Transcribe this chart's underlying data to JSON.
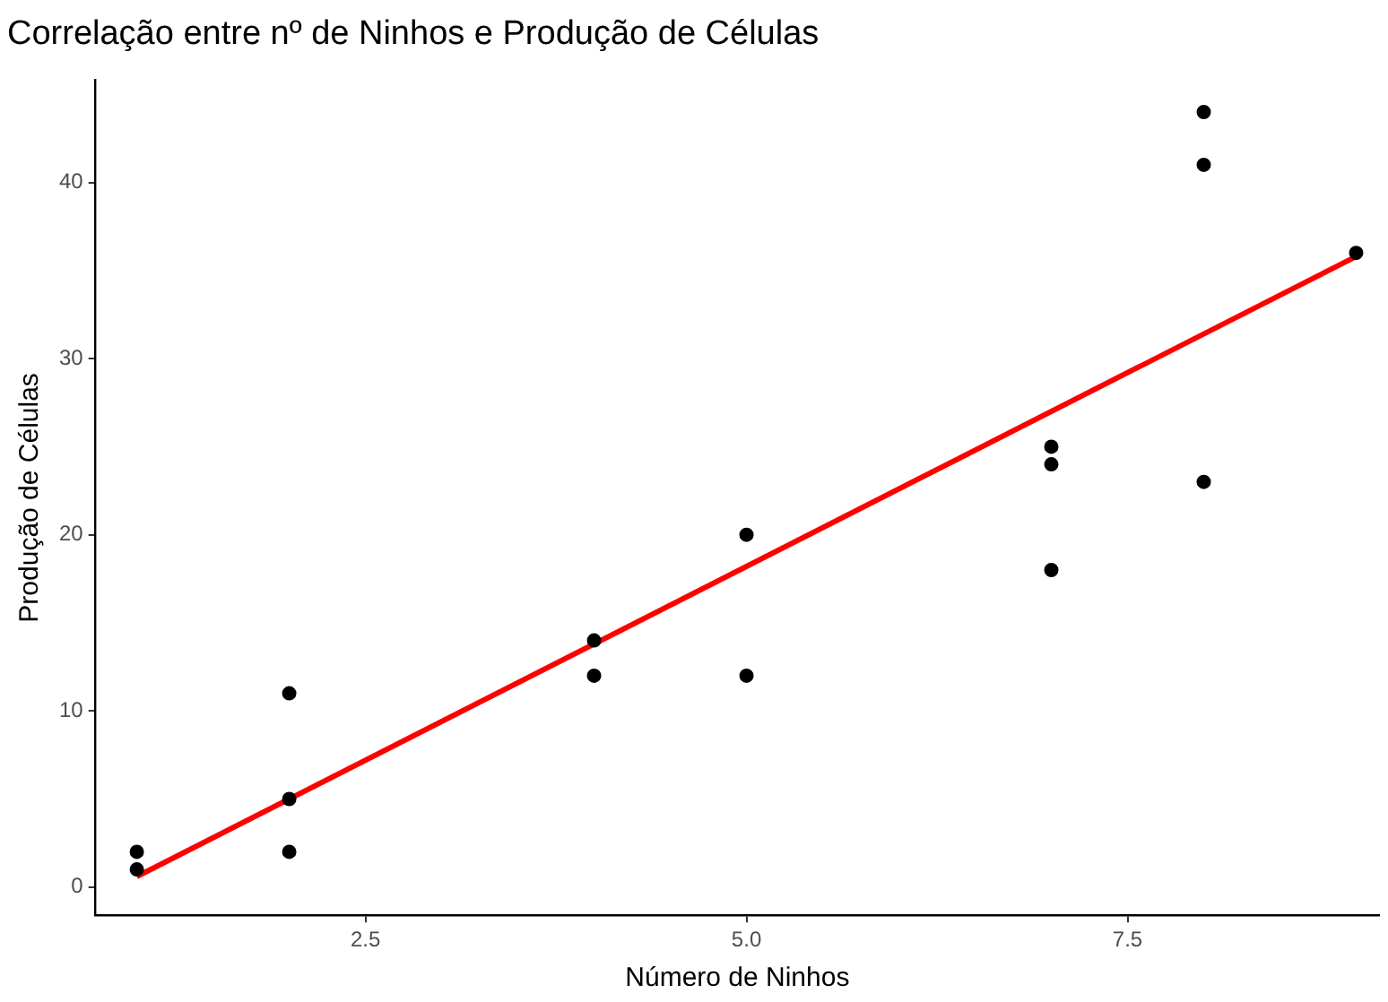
{
  "chart_data": {
    "type": "scatter",
    "title": "Correlação entre nº de Ninhos e Produção de Células",
    "xlabel": "Número de Ninhos",
    "ylabel": "Produção de Células",
    "xlim": [
      0.73,
      9.15
    ],
    "xticks": [
      {
        "value": 2.5,
        "label": "2.5"
      },
      {
        "value": 5,
        "label": "5.0"
      },
      {
        "value": 7.5,
        "label": "7.5"
      }
    ],
    "ylim": [
      -1.6,
      45.8
    ],
    "yticks": [
      0,
      10,
      20,
      30,
      40
    ],
    "grid": false,
    "legend": false,
    "series": [
      {
        "marker": "circle",
        "color": "#000000",
        "x": [
          1,
          1,
          2,
          2,
          2,
          4,
          4,
          5,
          5,
          7,
          7,
          7,
          8,
          8,
          8,
          9
        ],
        "values": [
          2,
          1,
          11,
          5,
          2,
          14,
          12,
          20,
          12,
          25,
          24,
          18,
          44,
          41,
          23,
          36
        ]
      },
      {
        "type": "line",
        "color": "#ff0000",
        "line_style": "solid",
        "x": [
          1,
          9
        ],
        "values": [
          0.6,
          35.8
        ]
      }
    ]
  }
}
